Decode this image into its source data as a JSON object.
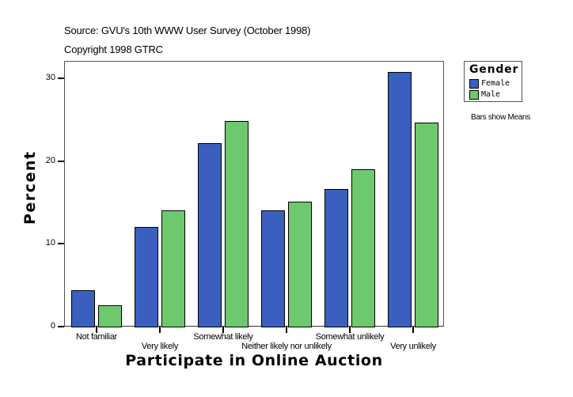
{
  "header": {
    "source": "Source: GVU's 10th WWW User Survey (October 1998)",
    "copyright": "Copyright 1998 GTRC"
  },
  "legend": {
    "title": "Gender",
    "items": [
      {
        "label": "Female",
        "color": "#3a5fbf"
      },
      {
        "label": "Male",
        "color": "#6ec86e"
      }
    ]
  },
  "note": "Bars show Means",
  "axes": {
    "ylabel": "Percent",
    "xlabel": "Participate in Online Auction",
    "yticks": [
      "0",
      "10",
      "20",
      "30"
    ]
  },
  "chart_data": {
    "type": "bar",
    "title": "Source: GVU's 10th WWW User Survey (October 1998)",
    "subtitle": "Copyright 1998 GTRC",
    "xlabel": "Participate in Online Auction",
    "ylabel": "Percent",
    "ylim": [
      0,
      32
    ],
    "yticks": [
      0,
      10,
      20,
      30
    ],
    "grid": false,
    "legend_position": "right",
    "legend_title": "Gender",
    "annotation": "Bars show Means",
    "categories": [
      "Not familiar",
      "Very likely",
      "Somewhat likely",
      "Neither likely nor unlikely",
      "Somewhat unlikely",
      "Very unlikely"
    ],
    "series": [
      {
        "name": "Female",
        "color": "#3a5fbf",
        "values": [
          4.4,
          12.0,
          22.2,
          14.0,
          16.6,
          30.8
        ]
      },
      {
        "name": "Male",
        "color": "#6ec86e",
        "values": [
          2.6,
          14.0,
          24.8,
          15.1,
          19.0,
          24.6
        ]
      }
    ]
  }
}
